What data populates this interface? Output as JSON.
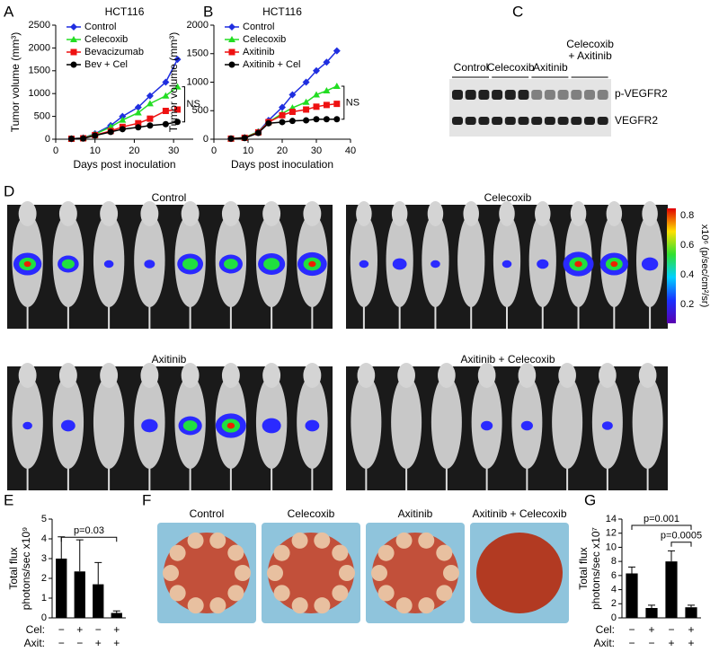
{
  "chart_data": [
    {
      "type": "line",
      "title": "HCT116",
      "xlabel": "Days post inoculation",
      "ylabel": "Tumor volume (mm³)",
      "xlim": [
        0,
        35
      ],
      "xticks": [
        0,
        10,
        20,
        30
      ],
      "ylim": [
        0,
        2500
      ],
      "yticks": [
        0,
        500,
        1000,
        1500,
        2000,
        2500
      ],
      "x": [
        4,
        7,
        10,
        14,
        17,
        21,
        24,
        28,
        31
      ],
      "legend": "upper left",
      "annotation": "NS",
      "series": [
        {
          "name": "Control",
          "color": "#1f2ee0",
          "marker": "diamond",
          "values": [
            10,
            30,
            120,
            300,
            500,
            700,
            950,
            1250,
            1750
          ]
        },
        {
          "name": "Celecoxib",
          "color": "#22dd22",
          "marker": "triangle",
          "values": [
            10,
            25,
            110,
            270,
            420,
            580,
            780,
            950,
            1150
          ]
        },
        {
          "name": "Bevacizumab",
          "color": "#ee1111",
          "marker": "square",
          "values": [
            10,
            20,
            90,
            180,
            270,
            350,
            450,
            620,
            650
          ]
        },
        {
          "name": "Bev + Cel",
          "color": "#000000",
          "marker": "circle",
          "values": [
            10,
            15,
            80,
            160,
            220,
            260,
            300,
            330,
            380
          ]
        }
      ]
    },
    {
      "type": "line",
      "title": "HCT116",
      "xlabel": "Days post inoculation",
      "ylabel": "Tumor volume (mm³)",
      "xlim": [
        0,
        40
      ],
      "xticks": [
        0,
        10,
        20,
        30,
        40
      ],
      "ylim": [
        0,
        2000
      ],
      "yticks": [
        0,
        500,
        1000,
        1500,
        2000
      ],
      "x": [
        5,
        9,
        13,
        16,
        20,
        23,
        27,
        30,
        33,
        36
      ],
      "legend": "upper left",
      "annotation": "NS",
      "series": [
        {
          "name": "Control",
          "color": "#1f2ee0",
          "marker": "diamond",
          "values": [
            10,
            30,
            130,
            330,
            560,
            780,
            1000,
            1200,
            1350,
            1550
          ]
        },
        {
          "name": "Celecoxib",
          "color": "#22dd22",
          "marker": "triangle",
          "values": [
            10,
            30,
            130,
            300,
            450,
            550,
            650,
            780,
            850,
            930
          ]
        },
        {
          "name": "Axitinib",
          "color": "#ee1111",
          "marker": "square",
          "values": [
            10,
            25,
            120,
            300,
            420,
            480,
            520,
            570,
            600,
            620
          ]
        },
        {
          "name": "Axitinib + Cel",
          "color": "#000000",
          "marker": "circle",
          "values": [
            10,
            20,
            110,
            280,
            300,
            320,
            330,
            350,
            350,
            350
          ]
        }
      ]
    },
    {
      "type": "bar",
      "ylabel": [
        "Total flux",
        "photons/sec x10⁹"
      ],
      "ylim": [
        0,
        5
      ],
      "yticks": [
        0,
        1,
        2,
        3,
        4,
        5
      ],
      "color": "#000000",
      "values": [
        3.0,
        2.35,
        1.7,
        0.25
      ],
      "errors": [
        1.1,
        1.6,
        1.1,
        0.1
      ],
      "annotations": [
        "p=0.03"
      ],
      "rows": [
        {
          "label": "Cel:",
          "signs": [
            "−",
            "+",
            "−",
            "+"
          ]
        },
        {
          "label": "Axit:",
          "signs": [
            "−",
            "−",
            "+",
            "+"
          ]
        }
      ]
    },
    {
      "type": "bar",
      "ylabel": [
        "Total flux",
        "photons/sec x10⁷"
      ],
      "ylim": [
        0,
        14
      ],
      "yticks": [
        0,
        2,
        4,
        6,
        8,
        10,
        12,
        14
      ],
      "color": "#000000",
      "values": [
        6.3,
        1.4,
        8.0,
        1.5
      ],
      "errors": [
        0.9,
        0.4,
        1.5,
        0.3
      ],
      "annotations": [
        "p=0.001",
        "p=0.0005"
      ],
      "rows": [
        {
          "label": "Cel:",
          "signs": [
            "−",
            "+",
            "−",
            "+"
          ]
        },
        {
          "label": "Axit:",
          "signs": [
            "−",
            "−",
            "+",
            "+"
          ]
        }
      ]
    }
  ],
  "panel_letters": [
    "A",
    "B",
    "C",
    "D",
    "E",
    "F",
    "G"
  ],
  "blot": {
    "groups": [
      [
        "Control"
      ],
      [
        "Celecoxib"
      ],
      [
        "Axitinib"
      ],
      [
        "Celecoxib",
        "+ Axitinib"
      ]
    ],
    "rows": [
      "p-VEGFR2",
      "VEGFR2"
    ]
  },
  "imaging": {
    "groups": [
      "Control",
      "Celecoxib",
      "Axitinib",
      "Axitinib + Celecoxib"
    ],
    "colorbar": {
      "ticks": [
        0.8,
        0.6,
        0.4,
        0.2
      ],
      "label": "x10⁶ (p/sec/cm²/sr)"
    }
  },
  "livers": {
    "labels": [
      "Control",
      "Celecoxib",
      "Axitinib",
      "Axitinib + Celecoxib"
    ]
  }
}
